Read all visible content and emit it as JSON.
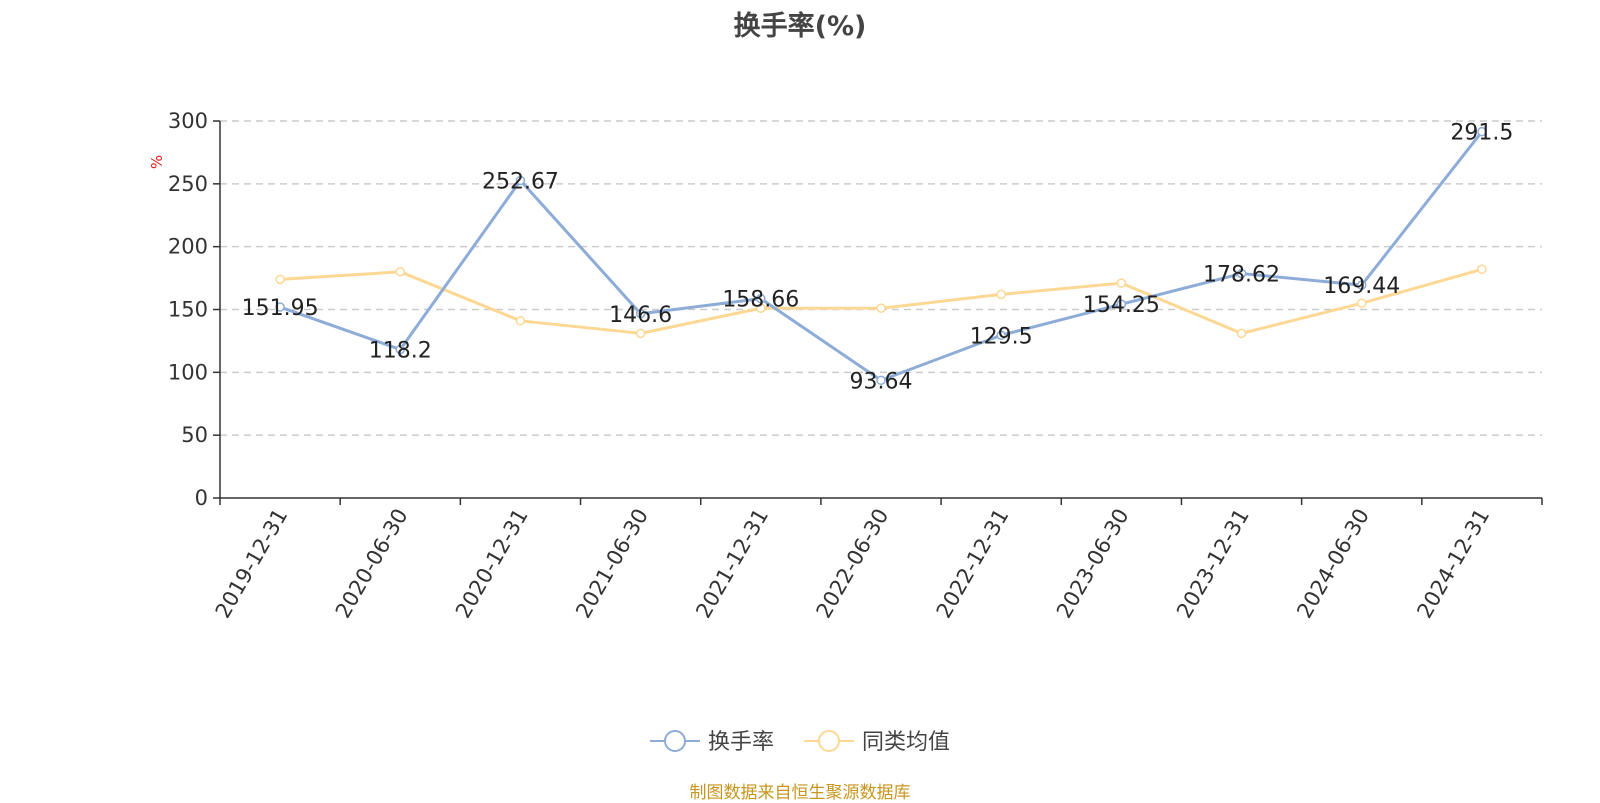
{
  "chart_data": {
    "type": "line",
    "title": "换手率(%)",
    "ylabel": "%",
    "ylim": [
      0,
      300
    ],
    "yticks": [
      0,
      50,
      100,
      150,
      200,
      250,
      300
    ],
    "categories": [
      "2019-12-31",
      "2020-06-30",
      "2020-12-31",
      "2021-06-30",
      "2021-12-31",
      "2022-06-30",
      "2022-12-31",
      "2023-06-30",
      "2023-12-31",
      "2024-06-30",
      "2024-12-31"
    ],
    "series": [
      {
        "name": "换手率",
        "color": "#8eacd8",
        "values": [
          151.95,
          118.2,
          252.67,
          146.6,
          158.66,
          93.64,
          129.5,
          154.25,
          178.62,
          169.44,
          291.5
        ],
        "labels": [
          "151.95",
          "118.2",
          "252.67",
          "146.6",
          "158.66",
          "93.64",
          "129.5",
          "154.25",
          "178.62",
          "169.44",
          "291.5"
        ]
      },
      {
        "name": "同类均值",
        "color": "#fcd894",
        "values": [
          174,
          180,
          141,
          131,
          151,
          151,
          162,
          171,
          131,
          155,
          182
        ]
      }
    ],
    "grid": true,
    "legend_position": "bottom-center"
  },
  "footer": {
    "source": "制图数据来自恒生聚源数据库"
  }
}
